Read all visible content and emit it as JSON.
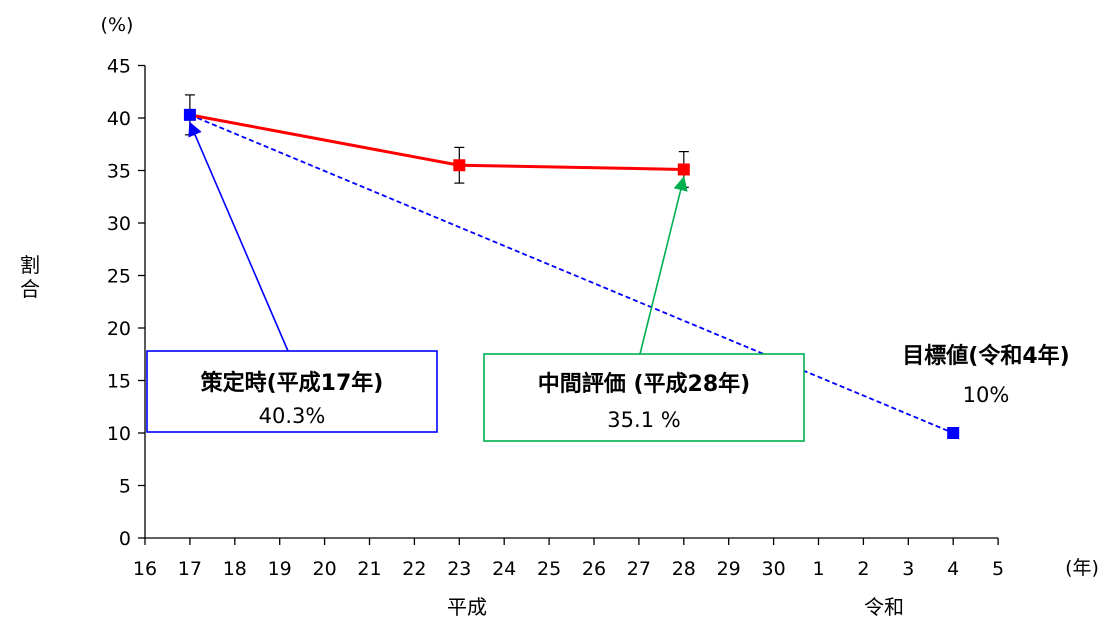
{
  "chart_data": {
    "type": "line",
    "ylabel": "割合",
    "y_unit": "(%)",
    "x_unit": "(年)",
    "ylim": [
      0,
      45
    ],
    "y_ticks": [
      0,
      5,
      10,
      15,
      20,
      25,
      30,
      35,
      40,
      45
    ],
    "x_ticks": [
      "16",
      "17",
      "18",
      "19",
      "20",
      "21",
      "22",
      "23",
      "24",
      "25",
      "26",
      "27",
      "28",
      "29",
      "30",
      "1",
      "2",
      "3",
      "4",
      "5"
    ],
    "eras": [
      {
        "label": "平成",
        "from_tick": 0,
        "to_tick": 14
      },
      {
        "label": "令和",
        "from_tick": 15,
        "to_tick": 19
      }
    ],
    "series": [
      {
        "kind": "actual",
        "color": "#ff0000",
        "marker_color": "#ff0000",
        "points": [
          {
            "x": "17",
            "y": 40.3,
            "err": 1.9
          },
          {
            "x": "23",
            "y": 35.5,
            "err": 1.7
          },
          {
            "x": "28",
            "y": 35.1,
            "err": 1.7
          }
        ]
      },
      {
        "kind": "target-trend",
        "color": "#0000ff",
        "dashed": true,
        "points": [
          {
            "x": "17",
            "y": 40.3
          },
          {
            "x": "4",
            "y": 10
          }
        ]
      }
    ],
    "annotations": [
      {
        "title": "策定時(平成17年)",
        "value": "40.3%",
        "box_color": "#0000ff",
        "points_to": {
          "x": "17",
          "y": 40.3
        }
      },
      {
        "title": "中間評価 (平成28年)",
        "value": "35.1 %",
        "box_color": "#00b050",
        "points_to": {
          "x": "28",
          "y": 35.1
        }
      },
      {
        "title": "目標値(令和4年)",
        "value": "10%",
        "box_color": null,
        "points_to": null
      }
    ]
  }
}
